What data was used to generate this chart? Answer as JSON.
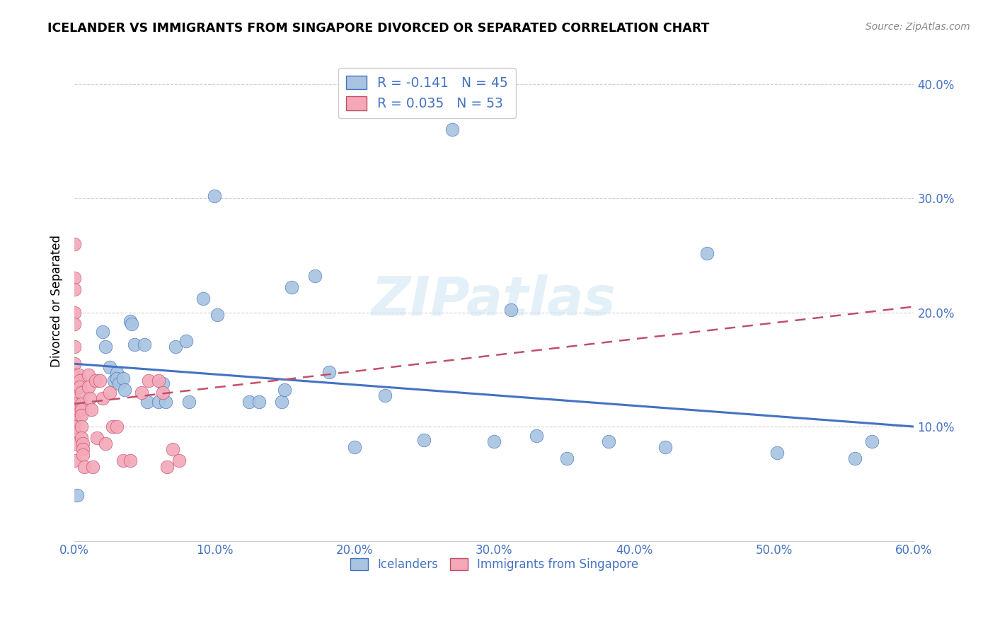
{
  "title": "ICELANDER VS IMMIGRANTS FROM SINGAPORE DIVORCED OR SEPARATED CORRELATION CHART",
  "source": "Source: ZipAtlas.com",
  "xlabel_icelanders": "Icelanders",
  "xlabel_singapore": "Immigrants from Singapore",
  "ylabel": "Divorced or Separated",
  "r_icelanders": -0.141,
  "n_icelanders": 45,
  "r_singapore": 0.035,
  "n_singapore": 53,
  "xlim": [
    0.0,
    0.6
  ],
  "ylim": [
    0.0,
    0.42
  ],
  "color_icelanders": "#a8c4e0",
  "color_singapore": "#f4a8b8",
  "line_color_icelanders": "#4472c4",
  "line_color_singapore": "#c0506a",
  "watermark": "ZIPatlas",
  "icelanders_x": [
    0.002,
    0.02,
    0.022,
    0.025,
    0.028,
    0.03,
    0.03,
    0.032,
    0.035,
    0.036,
    0.04,
    0.041,
    0.043,
    0.05,
    0.052,
    0.06,
    0.063,
    0.065,
    0.072,
    0.08,
    0.082,
    0.092,
    0.1,
    0.102,
    0.125,
    0.132,
    0.148,
    0.15,
    0.155,
    0.172,
    0.182,
    0.2,
    0.222,
    0.25,
    0.27,
    0.3,
    0.312,
    0.33,
    0.352,
    0.382,
    0.422,
    0.452,
    0.502,
    0.558,
    0.57
  ],
  "icelanders_y": [
    0.04,
    0.183,
    0.17,
    0.152,
    0.14,
    0.147,
    0.142,
    0.138,
    0.142,
    0.132,
    0.192,
    0.19,
    0.172,
    0.172,
    0.122,
    0.122,
    0.138,
    0.122,
    0.17,
    0.175,
    0.122,
    0.212,
    0.302,
    0.198,
    0.122,
    0.122,
    0.122,
    0.132,
    0.222,
    0.232,
    0.148,
    0.082,
    0.127,
    0.088,
    0.36,
    0.087,
    0.202,
    0.092,
    0.072,
    0.087,
    0.082,
    0.252,
    0.077,
    0.072,
    0.087
  ],
  "singapore_x": [
    0.0,
    0.0,
    0.0,
    0.0,
    0.0,
    0.0,
    0.0,
    0.0,
    0.0,
    0.0,
    0.0,
    0.0,
    0.0,
    0.0,
    0.0,
    0.0,
    0.0,
    0.0,
    0.003,
    0.004,
    0.004,
    0.005,
    0.005,
    0.005,
    0.005,
    0.005,
    0.005,
    0.006,
    0.006,
    0.006,
    0.007,
    0.01,
    0.01,
    0.011,
    0.012,
    0.013,
    0.015,
    0.016,
    0.018,
    0.02,
    0.022,
    0.025,
    0.027,
    0.03,
    0.035,
    0.04,
    0.048,
    0.053,
    0.06,
    0.063,
    0.066,
    0.07,
    0.075
  ],
  "singapore_y": [
    0.26,
    0.23,
    0.22,
    0.2,
    0.19,
    0.17,
    0.155,
    0.145,
    0.135,
    0.125,
    0.12,
    0.115,
    0.11,
    0.105,
    0.1,
    0.095,
    0.085,
    0.07,
    0.145,
    0.14,
    0.135,
    0.13,
    0.12,
    0.115,
    0.11,
    0.1,
    0.09,
    0.085,
    0.08,
    0.075,
    0.065,
    0.145,
    0.135,
    0.125,
    0.115,
    0.065,
    0.14,
    0.09,
    0.14,
    0.125,
    0.085,
    0.13,
    0.1,
    0.1,
    0.07,
    0.07,
    0.13,
    0.14,
    0.14,
    0.13,
    0.065,
    0.08,
    0.07
  ],
  "ice_line_x0": 0.0,
  "ice_line_y0": 0.155,
  "ice_line_x1": 0.6,
  "ice_line_y1": 0.1,
  "sing_line_x0": 0.0,
  "sing_line_y0": 0.12,
  "sing_line_x1": 0.6,
  "sing_line_y1": 0.205
}
